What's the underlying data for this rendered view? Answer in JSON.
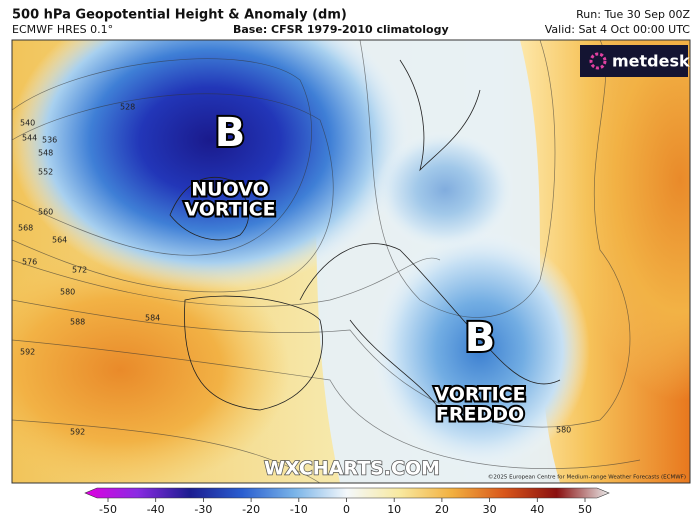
{
  "header": {
    "title": "500 hPa Geopotential Height & Anomaly (dm)",
    "model": "ECMWF HRES 0.1°",
    "base": "Base: CFSR 1979-2010 climatology",
    "run": "Run: Tue 30 Sep 00Z",
    "valid": "Valid: Sat 4 Oct 00:00 UTC"
  },
  "logo": "metdesk",
  "annotations": [
    {
      "symbol": "B",
      "lines": [
        "NUOVO",
        "VORTICE"
      ]
    },
    {
      "symbol": "B",
      "lines": [
        "VORTICE",
        "FREDDO"
      ]
    }
  ],
  "contour_labels": [
    "528",
    "536",
    "540",
    "544",
    "548",
    "552",
    "560",
    "564",
    "568",
    "572",
    "576",
    "580",
    "584",
    "588",
    "592",
    "592",
    "580"
  ],
  "watermark": "WXCHARTS.COM",
  "copyright": "©2025 European Centre for Medium-range Weather Forecasts (ECMWF)",
  "colorbar": {
    "ticks": [
      -50,
      -40,
      -30,
      -20,
      -10,
      0,
      10,
      20,
      30,
      40,
      50
    ]
  }
}
